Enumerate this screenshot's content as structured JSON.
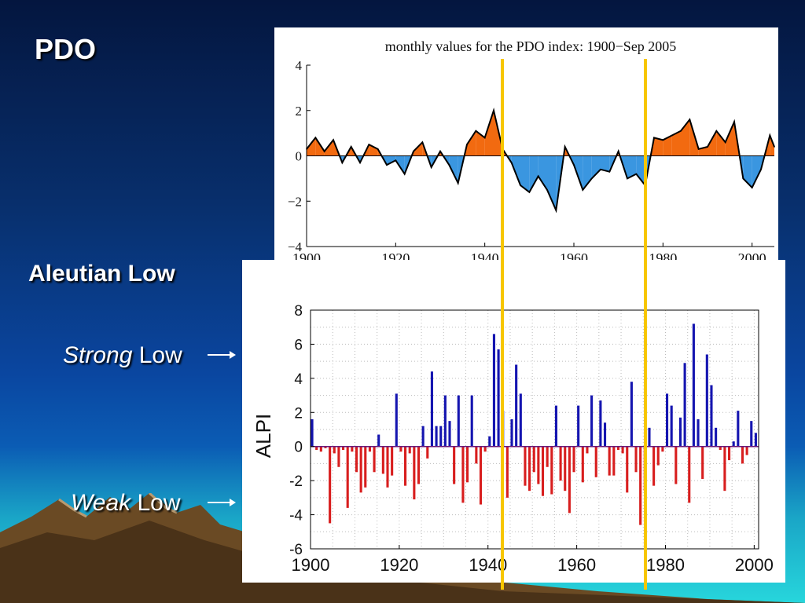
{
  "slide": {
    "title": "PDO",
    "subtitle": "Aleutian Low",
    "strong_label_italic": "Strong",
    "strong_label_rest": "Low",
    "weak_label_italic": "Weak",
    "weak_label_rest": "Low"
  },
  "colors": {
    "positive_fill": "#f26a10",
    "negative_fill": "#3a96e0",
    "alpi_positive": "#1515b0",
    "alpi_negative": "#d81e1e",
    "highlight_line": "#f7c600"
  },
  "highlight_years": [
    1944,
    1976
  ],
  "chart_data": [
    {
      "type": "area",
      "title": "monthly values for the PDO index: 1900−Sep 2005",
      "xlim": [
        1900,
        2005
      ],
      "ylim": [
        -4,
        4
      ],
      "xticks": [
        "1900",
        "1920",
        "1940",
        "1960",
        "1980",
        "2000"
      ],
      "yticks": [
        "4",
        "2",
        "0",
        "−2",
        "−4"
      ],
      "grid": false,
      "series": [
        {
          "x": [
            1900,
            1902,
            1904,
            1906,
            1908,
            1910,
            1912,
            1914,
            1916,
            1918,
            1920,
            1922,
            1924,
            1926,
            1928,
            1930,
            1932,
            1934,
            1936,
            1938,
            1940,
            1942,
            1944,
            1946,
            1948,
            1950,
            1952,
            1954,
            1956,
            1958,
            1960,
            1962,
            1964,
            1966,
            1968,
            1970,
            1972,
            1974,
            1976,
            1978,
            1980,
            1982,
            1984,
            1986,
            1988,
            1990,
            1992,
            1994,
            1996,
            1998,
            2000,
            2002,
            2004,
            2005
          ],
          "y": [
            0.3,
            0.8,
            0.2,
            0.7,
            -0.3,
            0.4,
            -0.3,
            0.5,
            0.3,
            -0.4,
            -0.2,
            -0.8,
            0.2,
            0.6,
            -0.5,
            0.2,
            -0.4,
            -1.2,
            0.5,
            1.1,
            0.8,
            2.0,
            0.3,
            -0.3,
            -1.3,
            -1.6,
            -0.9,
            -1.5,
            -2.4,
            0.4,
            -0.4,
            -1.5,
            -1.0,
            -0.6,
            -0.7,
            0.2,
            -1.0,
            -0.8,
            -1.3,
            0.8,
            0.7,
            0.9,
            1.1,
            1.6,
            0.3,
            0.4,
            1.1,
            0.6,
            1.5,
            -1.0,
            -1.4,
            -0.6,
            0.9,
            0.4
          ]
        }
      ]
    },
    {
      "type": "bar",
      "ylabel": "ALPI",
      "xlim": [
        1900,
        2001
      ],
      "ylim": [
        -6,
        8
      ],
      "xticks": [
        "1900",
        "1920",
        "1940",
        "1960",
        "1980",
        "2000"
      ],
      "yticks": [
        "8",
        "6",
        "4",
        "2",
        "0",
        "-2",
        "-4",
        "-6"
      ],
      "grid": true,
      "series": [
        {
          "x": [
            1900,
            1901,
            1902,
            1903,
            1904,
            1905,
            1906,
            1907,
            1908,
            1909,
            1910,
            1911,
            1912,
            1913,
            1914,
            1915,
            1916,
            1917,
            1918,
            1919,
            1920,
            1921,
            1922,
            1923,
            1924,
            1925,
            1926,
            1927,
            1928,
            1929,
            1930,
            1931,
            1932,
            1933,
            1934,
            1935,
            1936,
            1937,
            1938,
            1939,
            1940,
            1941,
            1942,
            1943,
            1944,
            1945,
            1946,
            1947,
            1948,
            1949,
            1950,
            1951,
            1952,
            1953,
            1954,
            1955,
            1956,
            1957,
            1958,
            1959,
            1960,
            1961,
            1962,
            1963,
            1964,
            1965,
            1966,
            1967,
            1968,
            1969,
            1970,
            1971,
            1972,
            1973,
            1974,
            1975,
            1976,
            1977,
            1978,
            1979,
            1980,
            1981,
            1982,
            1983,
            1984,
            1985,
            1986,
            1987,
            1988,
            1989,
            1990,
            1991,
            1992,
            1993,
            1994,
            1995,
            1996,
            1997,
            1998,
            1999,
            2000
          ],
          "y": [
            1.6,
            -0.2,
            -0.3,
            -0.1,
            -4.5,
            -0.4,
            -1.2,
            -0.2,
            -3.6,
            -0.3,
            -1.5,
            -2.7,
            -2.4,
            -0.3,
            -1.5,
            0.7,
            -1.6,
            -2.4,
            -1.7,
            3.1,
            -0.3,
            -2.3,
            -0.4,
            -3.1,
            -2.2,
            1.2,
            -0.7,
            4.4,
            1.2,
            1.2,
            3.0,
            1.5,
            -2.2,
            3.0,
            -3.3,
            -2.1,
            3.0,
            -1.0,
            -3.4,
            -0.3,
            0.6,
            6.6,
            5.7,
            2.1,
            -3.0,
            1.6,
            4.8,
            3.1,
            -2.3,
            -2.6,
            -1.5,
            -2.2,
            -2.9,
            -1.2,
            -2.8,
            2.4,
            -2.0,
            -2.6,
            -3.9,
            -1.5,
            2.4,
            -2.1,
            -0.4,
            3.0,
            -1.8,
            2.7,
            1.4,
            -1.7,
            -1.7,
            -0.2,
            -0.4,
            -2.7,
            3.8,
            -1.5,
            -4.6,
            -2.6,
            1.1,
            -2.3,
            -1.1,
            -0.3,
            3.1,
            2.4,
            -2.2,
            1.7,
            4.9,
            -3.3,
            7.2,
            1.6,
            -1.9,
            5.4,
            3.6,
            1.1,
            -0.2,
            -2.6,
            -0.8,
            0.3,
            2.1,
            -1.0,
            -0.5,
            1.5,
            0.8
          ]
        }
      ]
    }
  ]
}
